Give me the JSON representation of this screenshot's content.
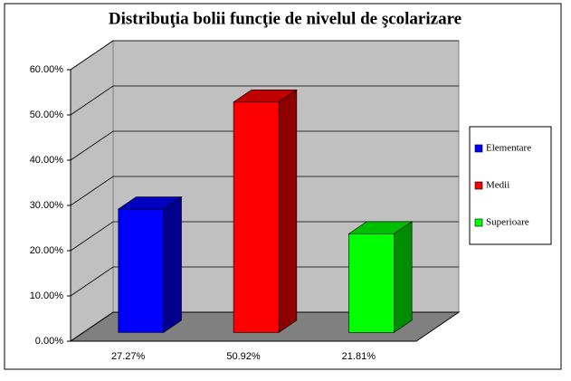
{
  "chart_data": {
    "type": "bar3d",
    "title": "Distribuţia bolii funcţie de nivelul de şcolarizare",
    "categories": [
      "27.27%",
      "50.92%",
      "21.81%"
    ],
    "series": [
      {
        "name": "Elementare",
        "color": "#0000ff",
        "values": [
          27.27,
          null,
          null
        ]
      },
      {
        "name": "Medii",
        "color": "#ff0000",
        "values": [
          null,
          50.92,
          null
        ]
      },
      {
        "name": "Superioare",
        "color": "#00ff00",
        "values": [
          null,
          null,
          21.81
        ]
      }
    ],
    "ylim": [
      0,
      60
    ],
    "yticks": [
      {
        "value": 0,
        "label": "0.00%"
      },
      {
        "value": 10,
        "label": "10.00%"
      },
      {
        "value": 20,
        "label": "20.00%"
      },
      {
        "value": 30,
        "label": "30.00%"
      },
      {
        "value": 40,
        "label": "40.00%"
      },
      {
        "value": 50,
        "label": "50.00%"
      },
      {
        "value": 60,
        "label": "60.00%"
      }
    ],
    "grid": true,
    "legend": "right"
  }
}
